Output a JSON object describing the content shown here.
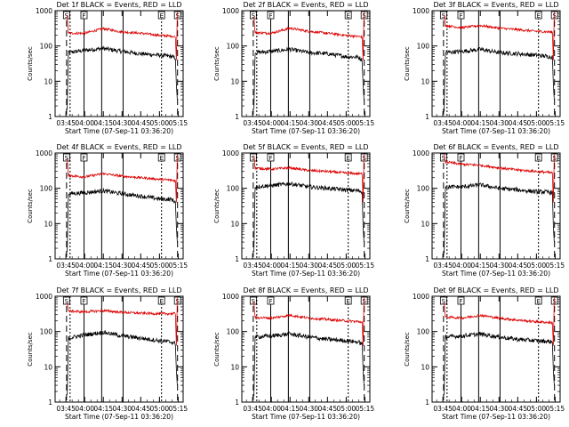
{
  "figure": {
    "xlabel": "Start Time (07-Sep-11 03:36:20)",
    "ylabel": "Counts/sec",
    "xticks": [
      "03:45",
      "04:00",
      "04:15",
      "04:30",
      "04:45",
      "05:00",
      "05:15"
    ],
    "yticks": [
      "1",
      "10",
      "100",
      "1000"
    ]
  },
  "colors": {
    "events": "#000000",
    "lld": "#dd0000"
  },
  "chart_data": [
    {
      "type": "line",
      "title": "Det 1f BLACK = Events, RED = LLD",
      "xlabel": "Start Time (07-Sep-11 03:36:20)",
      "ylabel": "Counts/sec",
      "scale": "log",
      "xlim": [
        "03:36:20",
        "05:19:00"
      ],
      "ylim": [
        1,
        1000
      ],
      "series": [
        {
          "name": "Events",
          "color": "#000000",
          "x": [
            "03:46",
            "03:47",
            "04:00",
            "04:15",
            "04:30",
            "04:45",
            "05:00",
            "05:10",
            "05:13"
          ],
          "values": [
            1.5,
            65,
            75,
            85,
            70,
            60,
            55,
            50,
            45
          ]
        },
        {
          "name": "LLD",
          "color": "#dd0000",
          "x": [
            "03:46",
            "03:47",
            "04:00",
            "04:15",
            "04:30",
            "04:45",
            "05:00",
            "05:10",
            "05:13"
          ],
          "values": [
            700,
            230,
            230,
            310,
            250,
            230,
            200,
            190,
            180
          ]
        }
      ],
      "markers": [
        "S",
        "F",
        "E",
        "S"
      ]
    },
    {
      "type": "line",
      "title": "Det 2f BLACK = Events, RED = LLD",
      "xlabel": "Start Time (07-Sep-11 03:36:20)",
      "ylabel": "Counts/sec",
      "scale": "log",
      "xlim": [
        "03:36:20",
        "05:19:00"
      ],
      "ylim": [
        1,
        1000
      ],
      "series": [
        {
          "name": "Events",
          "color": "#000000",
          "x": [
            "03:46",
            "03:47",
            "04:00",
            "04:15",
            "04:30",
            "04:45",
            "05:00",
            "05:10",
            "05:13"
          ],
          "values": [
            1.5,
            65,
            70,
            80,
            65,
            60,
            50,
            48,
            40
          ]
        },
        {
          "name": "LLD",
          "color": "#dd0000",
          "x": [
            "03:46",
            "03:47",
            "04:00",
            "04:15",
            "04:30",
            "04:45",
            "05:00",
            "05:10",
            "05:13"
          ],
          "values": [
            700,
            240,
            230,
            320,
            260,
            230,
            200,
            185,
            180
          ]
        }
      ],
      "markers": [
        "S",
        "F",
        "E",
        "S"
      ]
    },
    {
      "type": "line",
      "title": "Det 3f BLACK = Events, RED = LLD",
      "xlabel": "Start Time (07-Sep-11 03:36:20)",
      "ylabel": "Counts/sec",
      "scale": "log",
      "xlim": [
        "03:36:20",
        "05:19:00"
      ],
      "ylim": [
        1,
        1000
      ],
      "series": [
        {
          "name": "Events",
          "color": "#000000",
          "x": [
            "03:46",
            "03:47",
            "04:00",
            "04:15",
            "04:30",
            "04:45",
            "05:00",
            "05:10",
            "05:13"
          ],
          "values": [
            1.5,
            65,
            70,
            80,
            65,
            60,
            55,
            50,
            48
          ]
        },
        {
          "name": "LLD",
          "color": "#dd0000",
          "x": [
            "03:46",
            "03:47",
            "04:00",
            "04:15",
            "04:30",
            "04:45",
            "05:00",
            "05:10",
            "05:13"
          ],
          "values": [
            800,
            380,
            330,
            380,
            320,
            290,
            260,
            250,
            245
          ]
        }
      ],
      "markers": [
        "S",
        "F",
        "E",
        "S"
      ]
    },
    {
      "type": "line",
      "title": "Det 4f BLACK = Events, RED = LLD",
      "xlabel": "Start Time (07-Sep-11 03:36:20)",
      "ylabel": "Counts/sec",
      "scale": "log",
      "xlim": [
        "03:36:20",
        "05:19:00"
      ],
      "ylim": [
        1,
        1000
      ],
      "series": [
        {
          "name": "Events",
          "color": "#000000",
          "x": [
            "03:46",
            "03:47",
            "04:00",
            "04:15",
            "04:30",
            "04:45",
            "05:00",
            "05:10",
            "05:13"
          ],
          "values": [
            1.5,
            70,
            75,
            85,
            70,
            60,
            50,
            48,
            40
          ]
        },
        {
          "name": "LLD",
          "color": "#dd0000",
          "x": [
            "03:46",
            "03:47",
            "04:00",
            "04:15",
            "04:30",
            "04:45",
            "05:00",
            "05:10",
            "05:13"
          ],
          "values": [
            700,
            230,
            210,
            260,
            220,
            200,
            180,
            170,
            165
          ]
        }
      ],
      "markers": [
        "S",
        "F",
        "E",
        "S"
      ]
    },
    {
      "type": "line",
      "title": "Det 5f BLACK = Events, RED = LLD",
      "xlabel": "Start Time (07-Sep-11 03:36:20)",
      "ylabel": "Counts/sec",
      "scale": "log",
      "xlim": [
        "03:36:20",
        "05:19:00"
      ],
      "ylim": [
        1,
        1000
      ],
      "series": [
        {
          "name": "Events",
          "color": "#000000",
          "x": [
            "03:46",
            "03:47",
            "04:00",
            "04:15",
            "04:30",
            "04:45",
            "05:00",
            "05:10",
            "05:13"
          ],
          "values": [
            1.5,
            110,
            120,
            135,
            110,
            100,
            90,
            85,
            80
          ]
        },
        {
          "name": "LLD",
          "color": "#dd0000",
          "x": [
            "03:46",
            "03:47",
            "04:00",
            "04:15",
            "04:30",
            "04:45",
            "05:00",
            "05:10",
            "05:13"
          ],
          "values": [
            900,
            370,
            350,
            380,
            320,
            300,
            270,
            260,
            255
          ]
        }
      ],
      "markers": [
        "S",
        "F",
        "E",
        "S"
      ]
    },
    {
      "type": "line",
      "title": "Det 6f BLACK = Events, RED = LLD",
      "xlabel": "Start Time (07-Sep-11 03:36:20)",
      "ylabel": "Counts/sec",
      "scale": "log",
      "xlim": [
        "03:36:20",
        "05:19:00"
      ],
      "ylim": [
        1,
        1000
      ],
      "series": [
        {
          "name": "Events",
          "color": "#000000",
          "x": [
            "03:46",
            "03:47",
            "04:00",
            "04:15",
            "04:30",
            "04:45",
            "05:00",
            "05:10",
            "05:13"
          ],
          "values": [
            1.5,
            110,
            110,
            125,
            100,
            90,
            80,
            78,
            75
          ]
        },
        {
          "name": "LLD",
          "color": "#dd0000",
          "x": [
            "03:46",
            "03:47",
            "04:00",
            "04:15",
            "04:30",
            "04:45",
            "05:00",
            "05:10",
            "05:13"
          ],
          "values": [
            900,
            560,
            480,
            450,
            380,
            330,
            300,
            280,
            270
          ]
        }
      ],
      "markers": [
        "S",
        "F",
        "E",
        "S"
      ]
    },
    {
      "type": "line",
      "title": "Det 7f BLACK = Events, RED = LLD",
      "xlabel": "Start Time (07-Sep-11 03:36:20)",
      "ylabel": "Counts/sec",
      "scale": "log",
      "xlim": [
        "03:36:20",
        "05:19:00"
      ],
      "ylim": [
        1,
        1000
      ],
      "series": [
        {
          "name": "Events",
          "color": "#000000",
          "x": [
            "03:46",
            "03:47",
            "04:00",
            "04:15",
            "04:30",
            "04:45",
            "05:00",
            "05:10",
            "05:13"
          ],
          "values": [
            1.5,
            65,
            80,
            95,
            75,
            65,
            55,
            50,
            45
          ]
        },
        {
          "name": "LLD",
          "color": "#dd0000",
          "x": [
            "03:46",
            "03:47",
            "04:00",
            "04:15",
            "04:30",
            "04:45",
            "05:00",
            "05:10",
            "05:13"
          ],
          "values": [
            700,
            380,
            360,
            390,
            350,
            330,
            320,
            320,
            320
          ]
        }
      ],
      "markers": [
        "S",
        "F",
        "E",
        "S"
      ]
    },
    {
      "type": "line",
      "title": "Det 8f BLACK = Events, RED = LLD",
      "xlabel": "Start Time (07-Sep-11 03:36:20)",
      "ylabel": "Counts/sec",
      "scale": "log",
      "xlim": [
        "03:36:20",
        "05:19:00"
      ],
      "ylim": [
        1,
        1000
      ],
      "series": [
        {
          "name": "Events",
          "color": "#000000",
          "x": [
            "03:46",
            "03:47",
            "04:00",
            "04:15",
            "04:30",
            "04:45",
            "05:00",
            "05:10",
            "05:13"
          ],
          "values": [
            1.5,
            70,
            75,
            85,
            70,
            60,
            55,
            50,
            45
          ]
        },
        {
          "name": "LLD",
          "color": "#dd0000",
          "x": [
            "03:46",
            "03:47",
            "04:00",
            "04:15",
            "04:30",
            "04:45",
            "05:00",
            "05:10",
            "05:13"
          ],
          "values": [
            700,
            250,
            240,
            290,
            240,
            220,
            200,
            190,
            185
          ]
        }
      ],
      "markers": [
        "S",
        "F",
        "E",
        "S"
      ]
    },
    {
      "type": "line",
      "title": "Det 9f BLACK = Events, RED = LLD",
      "xlabel": "Start Time (07-Sep-11 03:36:20)",
      "ylabel": "Counts/sec",
      "scale": "log",
      "xlim": [
        "03:36:20",
        "05:19:00"
      ],
      "ylim": [
        1,
        1000
      ],
      "series": [
        {
          "name": "Events",
          "color": "#000000",
          "x": [
            "03:46",
            "03:47",
            "04:00",
            "04:15",
            "04:30",
            "04:45",
            "05:00",
            "05:10",
            "05:13"
          ],
          "values": [
            1.5,
            70,
            75,
            85,
            70,
            60,
            55,
            52,
            50
          ]
        },
        {
          "name": "LLD",
          "color": "#dd0000",
          "x": [
            "03:46",
            "03:47",
            "04:00",
            "04:15",
            "04:30",
            "04:45",
            "05:00",
            "05:10",
            "05:13"
          ],
          "values": [
            700,
            260,
            240,
            290,
            240,
            210,
            190,
            180,
            175
          ]
        }
      ],
      "markers": [
        "S",
        "F",
        "E",
        "S"
      ]
    }
  ]
}
